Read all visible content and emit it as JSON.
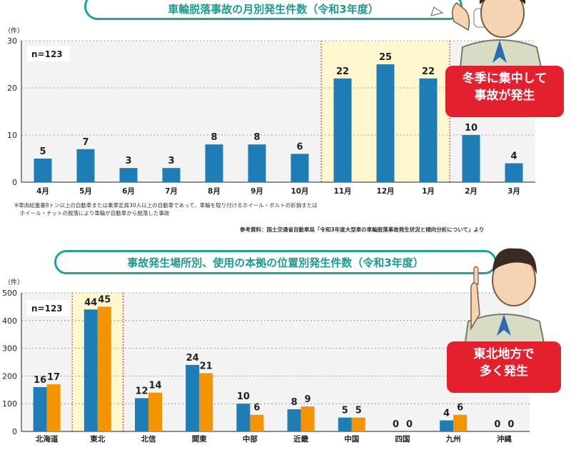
{
  "colors": {
    "bar_blue": "#1f7db5",
    "bar_orange": "#f39400",
    "highlight": "#fff8cf",
    "teal": "#1fa596",
    "red": "#e5202e",
    "plot_bg": "#f3f3f3"
  },
  "chart1": {
    "pill_title": "車輪脱落事故の月別発生件数（令和3年度）",
    "n_label": "n=123",
    "unit": "（件）",
    "callout_lines": [
      "冬季に集中して",
      "事故が発生"
    ],
    "notes": [
      "※車両総重量8トン以上の自動車または乗車定員30人以上の自動車であって、車輪を取り付けるホイール・ボルトの折損または",
      "　ホイール・ナットの脱落により車輪が自動車から脱落した事故"
    ],
    "source": "参考資料：国土交通省自動車局「令和3年度大型車の車輪脱落事故発生状況と傾向分析について」より"
  },
  "chart2": {
    "pill_title": "事故発生場所別、使用の本拠の位置別発生件数（令和3年度）",
    "n_label": "n=123",
    "unit": "（件）",
    "callout_lines": [
      "東北地方で",
      "多く発生"
    ]
  },
  "chart_data": [
    {
      "type": "bar",
      "title": "車輪脱落事故の月別発生件数（令和3年度）",
      "ylabel": "件",
      "categories": [
        "4月",
        "5月",
        "6月",
        "7月",
        "8月",
        "9月",
        "10月",
        "11月",
        "12月",
        "1月",
        "2月",
        "3月"
      ],
      "values": [
        5,
        7,
        3,
        3,
        8,
        8,
        6,
        22,
        25,
        22,
        10,
        4
      ],
      "ylim": [
        0,
        30
      ],
      "yticks": [
        0,
        10,
        20,
        30
      ],
      "grid": true,
      "highlight_categories": [
        "11月",
        "12月",
        "1月"
      ]
    },
    {
      "type": "bar",
      "title": "事故発生場所別、使用の本拠の位置別発生件数（令和3年度）",
      "ylabel": "件",
      "categories": [
        "北海道",
        "東北",
        "北信",
        "関東",
        "中部",
        "近畿",
        "中国",
        "四国",
        "九州",
        "沖縄"
      ],
      "series": [
        {
          "color": "#1f7db5",
          "values": [
            16,
            44,
            12,
            24,
            10,
            8,
            5,
            0,
            4,
            0
          ]
        },
        {
          "color": "#f39400",
          "values": [
            17,
            45,
            14,
            21,
            6,
            9,
            5,
            0,
            6,
            0
          ]
        }
      ],
      "plotted_values": [
        [
          160,
          440,
          120,
          240,
          100,
          80,
          50,
          0,
          40,
          0
        ],
        [
          170,
          450,
          140,
          210,
          60,
          90,
          50,
          0,
          60,
          0
        ]
      ],
      "ylim": [
        0,
        500
      ],
      "yticks": [
        0,
        100,
        200,
        300,
        400,
        500
      ],
      "grid": true,
      "highlight_categories": [
        "東北"
      ]
    }
  ]
}
